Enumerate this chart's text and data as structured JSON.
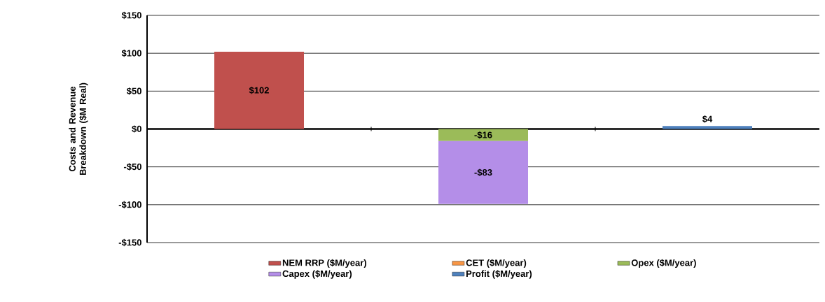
{
  "chart_data": {
    "type": "bar",
    "stacked": true,
    "ylabel": "Costs and Revenue Breakdown ($M Real)",
    "categories": [
      null,
      null,
      null
    ],
    "series": [
      {
        "name": "NEM RRP ($M/year)",
        "color": "#c0504d",
        "values": [
          102,
          null,
          null
        ],
        "value_labels": [
          "$102",
          null,
          null
        ]
      },
      {
        "name": "CET ($M/year)",
        "color": "#f79646",
        "values": [
          null,
          0,
          null
        ],
        "value_labels": [
          null,
          null,
          null
        ]
      },
      {
        "name": "Opex ($M/year)",
        "color": "#9bbb59",
        "values": [
          null,
          -16,
          null
        ],
        "value_labels": [
          null,
          "-$16",
          null
        ]
      },
      {
        "name": "Capex ($M/year)",
        "color": "#b48ee8",
        "values": [
          null,
          -83,
          null
        ],
        "value_labels": [
          null,
          "-$83",
          null
        ]
      },
      {
        "name": "Profit ($M/year)",
        "color": "#4f81bd",
        "values": [
          null,
          null,
          4
        ],
        "value_labels": [
          null,
          null,
          "$4"
        ]
      }
    ],
    "ylim": [
      -150,
      150
    ],
    "yticks": [
      {
        "value": -150,
        "label": "-$150"
      },
      {
        "value": -100,
        "label": "-$100"
      },
      {
        "value": -50,
        "label": "-$50"
      },
      {
        "value": 0,
        "label": "$0"
      },
      {
        "value": 50,
        "label": "$50"
      },
      {
        "value": 100,
        "label": "$100"
      },
      {
        "value": 150,
        "label": "$150"
      }
    ],
    "grid": "y",
    "legend": "bottom"
  }
}
